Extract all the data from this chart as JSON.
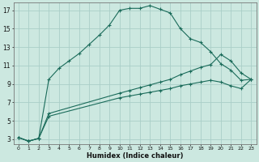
{
  "xlabel": "Humidex (Indice chaleur)",
  "background_color": "#cce8e0",
  "grid_color": "#aacec8",
  "line_color": "#1a6b5a",
  "xlim": [
    -0.5,
    23.5
  ],
  "ylim": [
    2.5,
    17.8
  ],
  "xticks": [
    0,
    1,
    2,
    3,
    4,
    5,
    6,
    7,
    8,
    9,
    10,
    11,
    12,
    13,
    14,
    15,
    16,
    17,
    18,
    19,
    20,
    21,
    22,
    23
  ],
  "yticks": [
    3,
    5,
    7,
    9,
    11,
    13,
    15,
    17
  ],
  "curve1_x": [
    0,
    1,
    2,
    3,
    4,
    5,
    6,
    7,
    8,
    9,
    10,
    11,
    12,
    13,
    14,
    15,
    16,
    17,
    18,
    19,
    20,
    21,
    22,
    23
  ],
  "curve1_y": [
    3.2,
    2.8,
    3.1,
    9.5,
    10.7,
    11.5,
    12.3,
    13.3,
    14.3,
    15.4,
    17.0,
    17.2,
    17.2,
    17.5,
    17.1,
    16.7,
    15.0,
    13.9,
    13.5,
    12.5,
    11.2,
    10.5,
    9.4,
    9.5
  ],
  "curve2_x": [
    0,
    1,
    2,
    3,
    10,
    11,
    12,
    13,
    14,
    15,
    16,
    17,
    18,
    19,
    20,
    21,
    22,
    23
  ],
  "curve2_y": [
    3.2,
    2.8,
    3.1,
    5.8,
    8.0,
    8.3,
    8.6,
    8.9,
    9.2,
    9.5,
    10.0,
    10.4,
    10.8,
    11.1,
    12.2,
    11.5,
    10.2,
    9.5
  ],
  "curve3_x": [
    0,
    1,
    2,
    3,
    10,
    11,
    12,
    13,
    14,
    15,
    16,
    17,
    18,
    19,
    20,
    21,
    22,
    23
  ],
  "curve3_y": [
    3.2,
    2.8,
    3.1,
    5.5,
    7.5,
    7.7,
    7.9,
    8.1,
    8.3,
    8.5,
    8.8,
    9.0,
    9.2,
    9.4,
    9.2,
    8.8,
    8.5,
    9.5
  ]
}
